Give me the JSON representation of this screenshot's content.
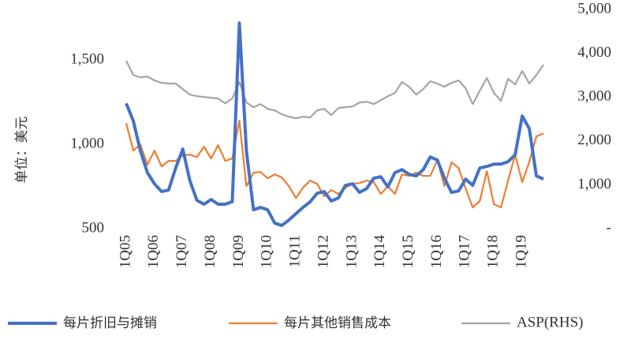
{
  "chart_data": {
    "type": "line",
    "y_label": "单位：美元",
    "categories": [
      "1Q05",
      null,
      null,
      null,
      "1Q06",
      null,
      null,
      null,
      "1Q07",
      null,
      null,
      null,
      "1Q08",
      null,
      null,
      null,
      "1Q09",
      null,
      null,
      null,
      "1Q10",
      null,
      null,
      null,
      "1Q11",
      null,
      null,
      null,
      "1Q12",
      null,
      null,
      null,
      "1Q13",
      null,
      null,
      null,
      "1Q14",
      null,
      null,
      null,
      "1Q15",
      null,
      null,
      null,
      "1Q16",
      null,
      null,
      null,
      "1Q17",
      null,
      null,
      null,
      "1Q18",
      null,
      null,
      null,
      "1Q19",
      null,
      null,
      null
    ],
    "series": [
      {
        "name": "每片折旧与摊销",
        "color": "#4472c4",
        "axis": "y",
        "values": [
          1243,
          1140,
          963,
          832,
          766,
          720,
          729,
          860,
          972,
          785,
          668,
          645,
          673,
          645,
          645,
          660,
          1720,
          960,
          612,
          626,
          612,
          533,
          519,
          551,
          589,
          626,
          659,
          710,
          720,
          664,
          682,
          757,
          766,
          715,
          738,
          799,
          808,
          748,
          832,
          850,
          822,
          813,
          850,
          925,
          907,
          799,
          715,
          724,
          794,
          757,
          860,
          869,
          883,
          883,
          897,
          939,
          1168,
          1093,
          813,
          794
        ]
      },
      {
        "name": "每片其他销售成本",
        "color": "#ed7d31",
        "axis": "y",
        "values": [
          1126,
          963,
          1000,
          879,
          963,
          869,
          902,
          902,
          935,
          939,
          925,
          986,
          916,
          995,
          902,
          916,
          1140,
          752,
          832,
          836,
          799,
          822,
          804,
          752,
          682,
          743,
          785,
          766,
          692,
          729,
          706,
          743,
          766,
          771,
          785,
          776,
          706,
          752,
          706,
          822,
          813,
          832,
          813,
          813,
          907,
          752,
          893,
          860,
          738,
          626,
          664,
          841,
          645,
          626,
          785,
          939,
          776,
          897,
          1047,
          1065
        ]
      },
      {
        "name": "ASP(RHS)",
        "color": "#a5a5a5",
        "axis": "y2",
        "values": [
          3831,
          3507,
          3453,
          3471,
          3381,
          3327,
          3309,
          3309,
          3183,
          3058,
          3022,
          3004,
          2986,
          2968,
          2860,
          2968,
          3345,
          2878,
          2770,
          2842,
          2734,
          2698,
          2608,
          2554,
          2518,
          2554,
          2536,
          2698,
          2734,
          2590,
          2752,
          2770,
          2788,
          2878,
          2896,
          2842,
          2932,
          3022,
          3094,
          3345,
          3237,
          3058,
          3183,
          3363,
          3309,
          3237,
          3327,
          3381,
          3201,
          2842,
          3147,
          3435,
          3094,
          2914,
          3417,
          3291,
          3597,
          3309,
          3507,
          3741
        ]
      }
    ],
    "ylim": [
      500,
      1800
    ],
    "yticks": [
      500,
      {
        "value": 1000,
        "label": "1,000"
      },
      {
        "value": 1500,
        "label": "1,500"
      }
    ],
    "y2lim": [
      0,
      5000
    ],
    "y2ticks": [
      {
        "value": 0,
        "label": "-"
      },
      {
        "value": 1000,
        "label": "1,000"
      },
      {
        "value": 2000,
        "label": "2,000"
      },
      {
        "value": 3000,
        "label": "3,000"
      },
      {
        "value": 4000,
        "label": "4,000"
      },
      {
        "value": 5000,
        "label": "5,000"
      }
    ],
    "grid": false,
    "legend": "bottom"
  }
}
